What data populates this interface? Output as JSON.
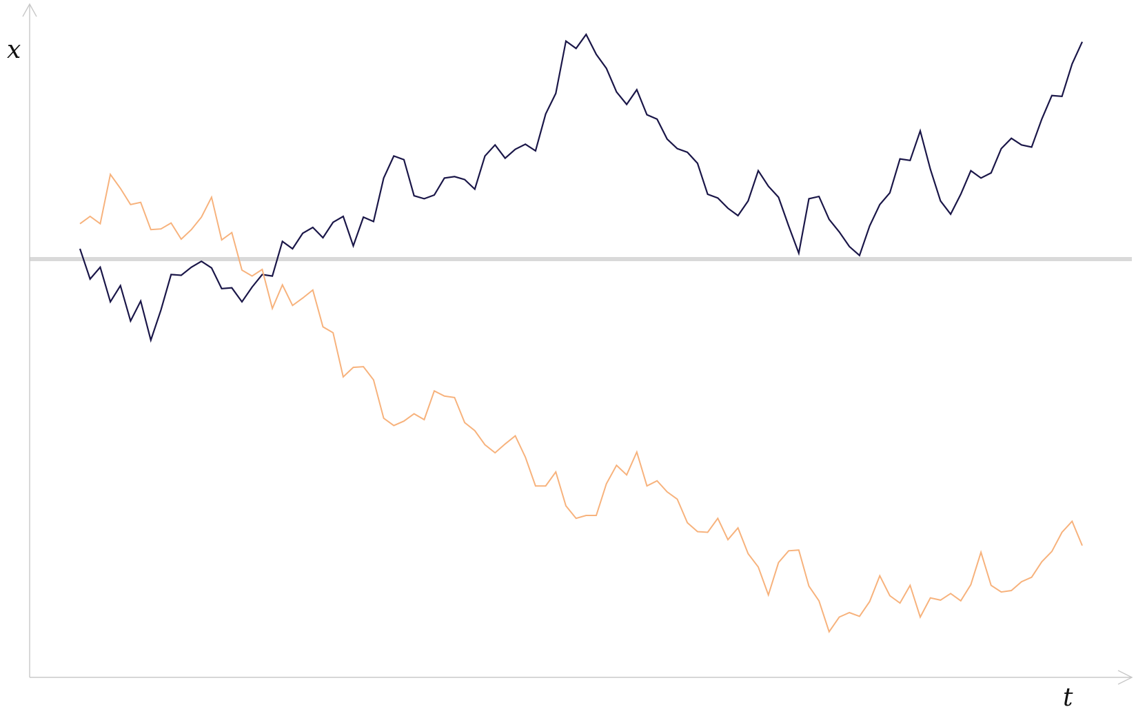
{
  "chart_data": {
    "type": "line",
    "xlabel": "t",
    "ylabel": "x",
    "xlim": [
      0,
      101
    ],
    "ylim": [
      -6.0,
      3.0
    ],
    "grid": false,
    "legend": "none",
    "reference_line": {
      "y": 0,
      "color": "#d9d9d9"
    },
    "series": [
      {
        "color": "#1a1648",
        "x": [
          0,
          1,
          2,
          3,
          4,
          5,
          6,
          7,
          8,
          9,
          10,
          11,
          12,
          13,
          14,
          15,
          16,
          17,
          18,
          19,
          20,
          21,
          22,
          23,
          24,
          25,
          26,
          27,
          28,
          29,
          30,
          31,
          32,
          33,
          34,
          35,
          36,
          37,
          38,
          39,
          40,
          41,
          42,
          43,
          44,
          45,
          46,
          47,
          48,
          49,
          50,
          51,
          52,
          53,
          54,
          55,
          56,
          57,
          58,
          59,
          60,
          61,
          62,
          63,
          64,
          65,
          66,
          67,
          68,
          69,
          70,
          71,
          72,
          73,
          74,
          75,
          76,
          77,
          78,
          79,
          80,
          81,
          82,
          83,
          84,
          85,
          86,
          87,
          88,
          89,
          90,
          91,
          92,
          93,
          94,
          95,
          96,
          97,
          98,
          99
        ],
        "y": [
          0.14,
          -0.27,
          -0.11,
          -0.58,
          -0.36,
          -0.84,
          -0.57,
          -1.1,
          -0.69,
          -0.21,
          -0.22,
          -0.11,
          -0.03,
          -0.12,
          -0.4,
          -0.39,
          -0.58,
          -0.38,
          -0.21,
          -0.23,
          0.24,
          0.14,
          0.35,
          0.43,
          0.29,
          0.5,
          0.58,
          0.18,
          0.57,
          0.51,
          1.1,
          1.4,
          1.35,
          0.86,
          0.82,
          0.87,
          1.1,
          1.12,
          1.08,
          0.95,
          1.4,
          1.55,
          1.37,
          1.49,
          1.56,
          1.47,
          1.97,
          2.25,
          2.96,
          2.86,
          3.05,
          2.78,
          2.59,
          2.27,
          2.1,
          2.3,
          1.96,
          1.9,
          1.63,
          1.5,
          1.45,
          1.3,
          0.88,
          0.83,
          0.69,
          0.59,
          0.79,
          1.2,
          0.99,
          0.84,
          0.45,
          0.08,
          0.82,
          0.85,
          0.54,
          0.37,
          0.17,
          0.05,
          0.45,
          0.74,
          0.9,
          1.36,
          1.34,
          1.74,
          1.22,
          0.79,
          0.61,
          0.88,
          1.2,
          1.1,
          1.17,
          1.5,
          1.64,
          1.55,
          1.52,
          1.9,
          2.22,
          2.21,
          2.65,
          2.95
        ]
      },
      {
        "color": "#f7b27c",
        "x": [
          0,
          1,
          2,
          3,
          4,
          5,
          6,
          7,
          8,
          9,
          10,
          11,
          12,
          13,
          14,
          15,
          16,
          17,
          18,
          19,
          20,
          21,
          22,
          23,
          24,
          25,
          26,
          27,
          28,
          29,
          30,
          31,
          32,
          33,
          34,
          35,
          36,
          37,
          38,
          39,
          40,
          41,
          42,
          43,
          44,
          45,
          46,
          47,
          48,
          49,
          50,
          51,
          52,
          53,
          54,
          55,
          56,
          57,
          58,
          59,
          60,
          61,
          62,
          63,
          64,
          65,
          66,
          67,
          68,
          69,
          70,
          71,
          72,
          73,
          74,
          75,
          76,
          77,
          78,
          79,
          80,
          81,
          82,
          83,
          84,
          85,
          86,
          87,
          88,
          89,
          90,
          91,
          92,
          93,
          94,
          95,
          96,
          97,
          98,
          99
        ],
        "y": [
          0.48,
          0.58,
          0.48,
          1.15,
          0.96,
          0.74,
          0.77,
          0.4,
          0.41,
          0.49,
          0.27,
          0.4,
          0.57,
          0.84,
          0.26,
          0.36,
          -0.15,
          -0.23,
          -0.14,
          -0.67,
          -0.35,
          -0.63,
          -0.53,
          -0.42,
          -0.92,
          -1.0,
          -1.6,
          -1.47,
          -1.46,
          -1.64,
          -2.16,
          -2.26,
          -2.2,
          -2.1,
          -2.18,
          -1.79,
          -1.86,
          -1.88,
          -2.22,
          -2.33,
          -2.52,
          -2.63,
          -2.51,
          -2.4,
          -2.69,
          -3.08,
          -3.08,
          -2.89,
          -3.35,
          -3.52,
          -3.48,
          -3.48,
          -3.05,
          -2.8,
          -2.93,
          -2.62,
          -3.08,
          -3.01,
          -3.16,
          -3.26,
          -3.58,
          -3.7,
          -3.71,
          -3.52,
          -3.81,
          -3.65,
          -4.0,
          -4.18,
          -4.56,
          -4.12,
          -3.96,
          -3.95,
          -4.44,
          -4.64,
          -5.06,
          -4.86,
          -4.8,
          -4.85,
          -4.65,
          -4.3,
          -4.57,
          -4.67,
          -4.43,
          -4.86,
          -4.6,
          -4.63,
          -4.54,
          -4.64,
          -4.42,
          -3.98,
          -4.43,
          -4.52,
          -4.5,
          -4.38,
          -4.32,
          -4.11,
          -3.97,
          -3.71,
          -3.56,
          -3.89
        ]
      }
    ]
  }
}
